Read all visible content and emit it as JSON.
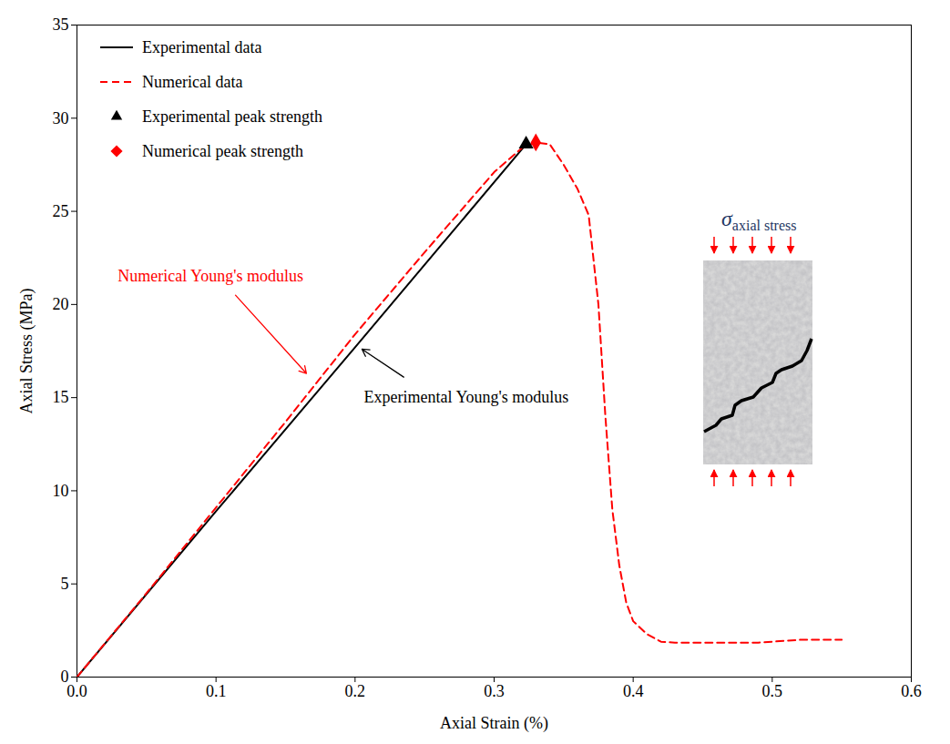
{
  "chart_data": {
    "type": "line",
    "xlabel": "Axial Strain (%)",
    "ylabel": "Axial Stress (MPa)",
    "xlim": [
      0,
      0.6
    ],
    "xticks": [
      {
        "value": 0,
        "label": "0.0"
      },
      {
        "value": 0.1,
        "label": "0.1"
      },
      {
        "value": 0.2,
        "label": "0.2"
      },
      {
        "value": 0.3,
        "label": "0.3"
      },
      {
        "value": 0.4,
        "label": "0.4"
      },
      {
        "value": 0.5,
        "label": "0.5"
      },
      {
        "value": 0.6,
        "label": "0.6"
      }
    ],
    "ylim": [
      0,
      35
    ],
    "yticks": [
      0,
      5,
      10,
      15,
      20,
      25,
      30,
      35
    ],
    "grid": false,
    "legend": "upper left",
    "series": [
      {
        "name": "Experimental data",
        "type": "line",
        "color": "#000000",
        "line_style": "solid",
        "x": [
          0,
          0.1,
          0.2,
          0.323
        ],
        "values": [
          0,
          8.9,
          17.7,
          28.6
        ]
      },
      {
        "name": "Numerical data",
        "type": "line",
        "color": "#ff0000",
        "line_style": "dashed",
        "x": [
          0,
          0.05,
          0.1,
          0.15,
          0.2,
          0.25,
          0.3,
          0.32,
          0.33,
          0.34,
          0.35,
          0.36,
          0.368,
          0.375,
          0.38,
          0.385,
          0.39,
          0.395,
          0.4,
          0.41,
          0.42,
          0.43,
          0.45,
          0.49,
          0.5,
          0.52,
          0.55
        ],
        "values": [
          0,
          4.5,
          9.1,
          13.7,
          18.4,
          22.8,
          27.1,
          28.4,
          28.7,
          28.6,
          27.5,
          26.2,
          24.8,
          20,
          14,
          9,
          6,
          4,
          3,
          2.3,
          1.9,
          1.85,
          1.85,
          1.85,
          1.9,
          2,
          2
        ]
      },
      {
        "name": "Experimental peak strength",
        "type": "scatter",
        "color": "#000000",
        "marker": "triangle",
        "x": [
          0.323
        ],
        "values": [
          28.6
        ]
      },
      {
        "name": "Numerical peak strength",
        "type": "scatter",
        "color": "#ff0000",
        "marker": "diamond",
        "x": [
          0.33
        ],
        "values": [
          28.7
        ]
      }
    ],
    "annotations": [
      {
        "text": "Numerical Young's modulus",
        "color": "#ff0000",
        "x": 0.096,
        "y": 21.5,
        "arrow_from": [
          0.114,
          20.5
        ],
        "arrow_to": [
          0.165,
          16.3
        ]
      },
      {
        "text": "Experimental Young's modulus",
        "color": "#000000",
        "x": 0.28,
        "y": 15.0,
        "arrow_from": [
          0.235,
          16.1
        ],
        "arrow_to": [
          0.205,
          17.6
        ]
      }
    ],
    "inset": {
      "symbol": "σ",
      "subscript": "axial stress"
    }
  }
}
